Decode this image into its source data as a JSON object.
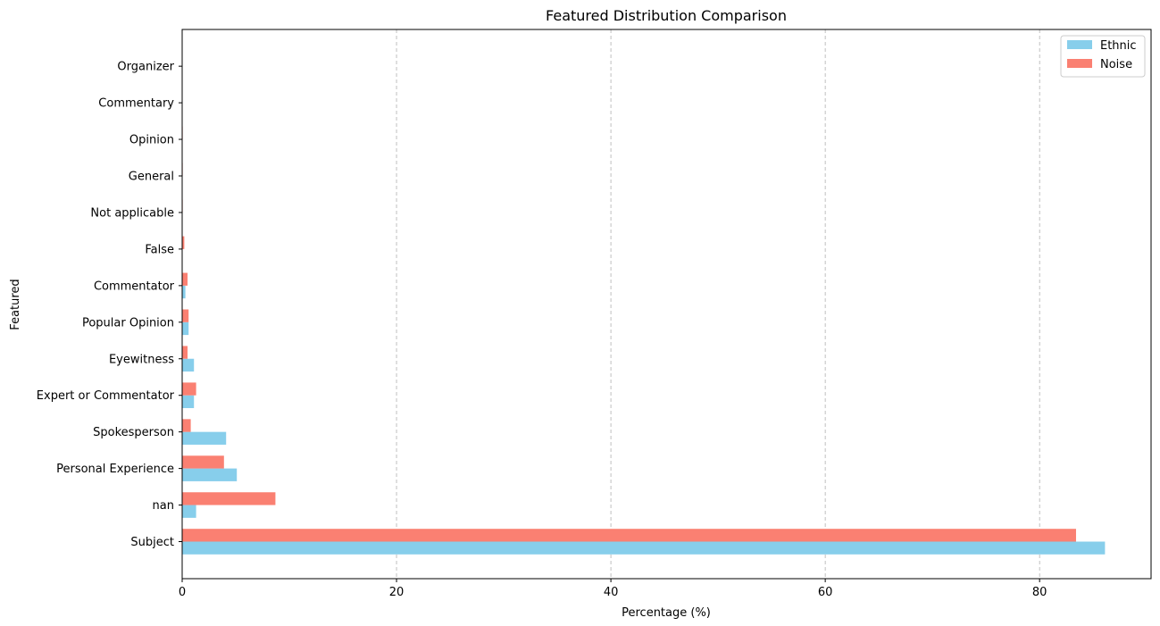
{
  "chart_data": {
    "type": "bar",
    "orientation": "horizontal",
    "title": "Featured Distribution Comparison",
    "xlabel": "Percentage (%)",
    "ylabel": "Featured",
    "categories": [
      "Subject",
      "nan",
      "Personal Experience",
      "Spokesperson",
      "Expert or Commentator",
      "Eyewitness",
      "Popular Opinion",
      "Commentator",
      "False",
      "Not applicable",
      "General",
      "Opinion",
      "Commentary",
      "Organizer"
    ],
    "series": [
      {
        "name": "Ethnic",
        "color": "#87ceeb",
        "values": [
          86.1,
          1.3,
          5.1,
          4.1,
          1.1,
          1.1,
          0.6,
          0.3,
          0.0,
          0.0,
          0.0,
          0.0,
          0.0,
          0.0
        ]
      },
      {
        "name": "Noise",
        "color": "#fa8072",
        "values": [
          83.4,
          8.7,
          3.9,
          0.8,
          1.3,
          0.5,
          0.6,
          0.5,
          0.2,
          0.05,
          0.05,
          0.05,
          0.03,
          0.03
        ]
      }
    ],
    "xlim": [
      0,
      90.4
    ],
    "xticks": [
      0,
      20,
      40,
      60,
      80
    ],
    "xtick_labels": [
      "0",
      "20",
      "40",
      "60",
      "80"
    ],
    "grid": "x-dashed",
    "legend": "top-right"
  }
}
